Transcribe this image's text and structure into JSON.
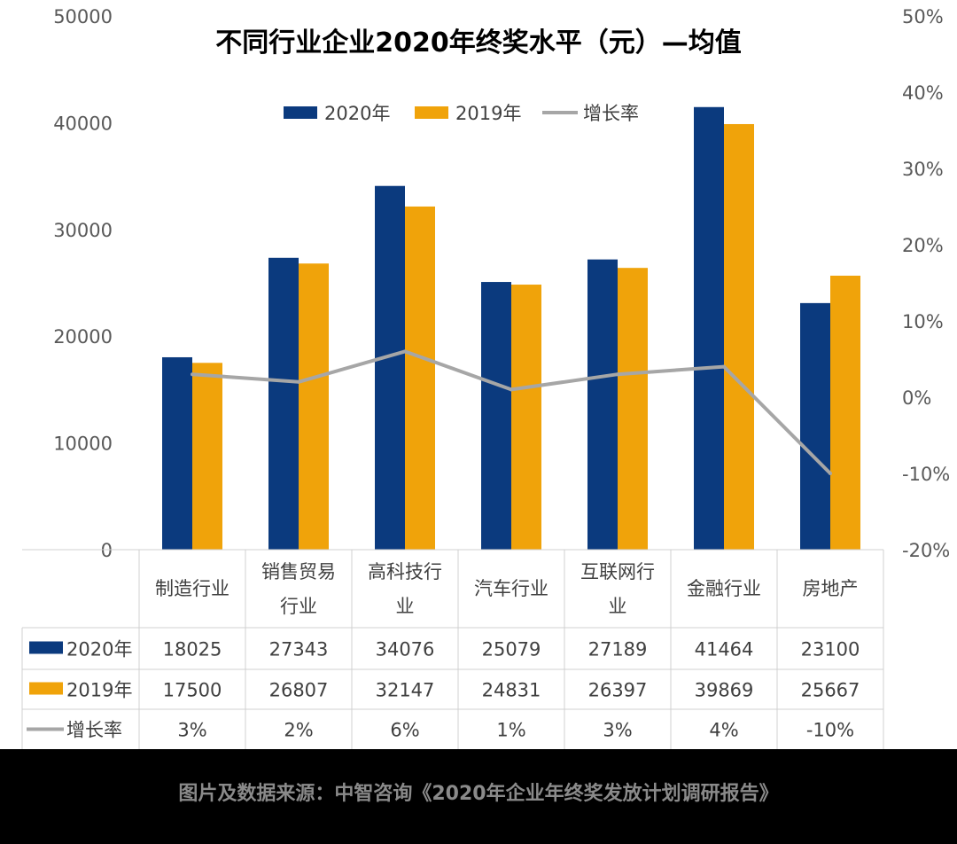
{
  "chart_data": {
    "type": "bar",
    "title": "不同行业企业2020年终奖水平（元）—均值",
    "categories": [
      "制造行业",
      "销售贸易行业",
      "高科技行业",
      "汽车行业",
      "互联网行业",
      "金融行业",
      "房地产"
    ],
    "category_label_lines": [
      [
        "制造行业"
      ],
      [
        "销售贸易",
        "行业"
      ],
      [
        "高科技行",
        "业"
      ],
      [
        "汽车行业"
      ],
      [
        "互联网行",
        "业"
      ],
      [
        "金融行业"
      ],
      [
        "房地产"
      ]
    ],
    "series": [
      {
        "name": "2020年",
        "type": "bar",
        "axis": "left",
        "color": "#0b3a7e",
        "values": [
          18025,
          27343,
          34076,
          25079,
          27189,
          41464,
          23100
        ]
      },
      {
        "name": "2019年",
        "type": "bar",
        "axis": "left",
        "color": "#f0a30a",
        "values": [
          17500,
          26807,
          32147,
          24831,
          26397,
          39869,
          25667
        ]
      },
      {
        "name": "增长率",
        "type": "line",
        "axis": "right",
        "color": "#a6a6a6",
        "values": [
          3,
          2,
          6,
          1,
          3,
          4,
          -10
        ],
        "labels": [
          "3%",
          "2%",
          "6%",
          "1%",
          "3%",
          "4%",
          "-10%"
        ]
      }
    ],
    "ylim": [
      0,
      50000
    ],
    "yticks": [
      "0",
      "10000",
      "20000",
      "30000",
      "40000",
      "50000"
    ],
    "y2lim": [
      -20,
      50
    ],
    "y2ticks": [
      "-20%",
      "-10%",
      "0%",
      "10%",
      "20%",
      "30%",
      "40%",
      "50%"
    ],
    "legend": "top-center",
    "data_table": true,
    "grid": false
  },
  "footer": {
    "source": "图片及数据来源：中智咨询《2020年企业年终奖发放计划调研报告》"
  }
}
